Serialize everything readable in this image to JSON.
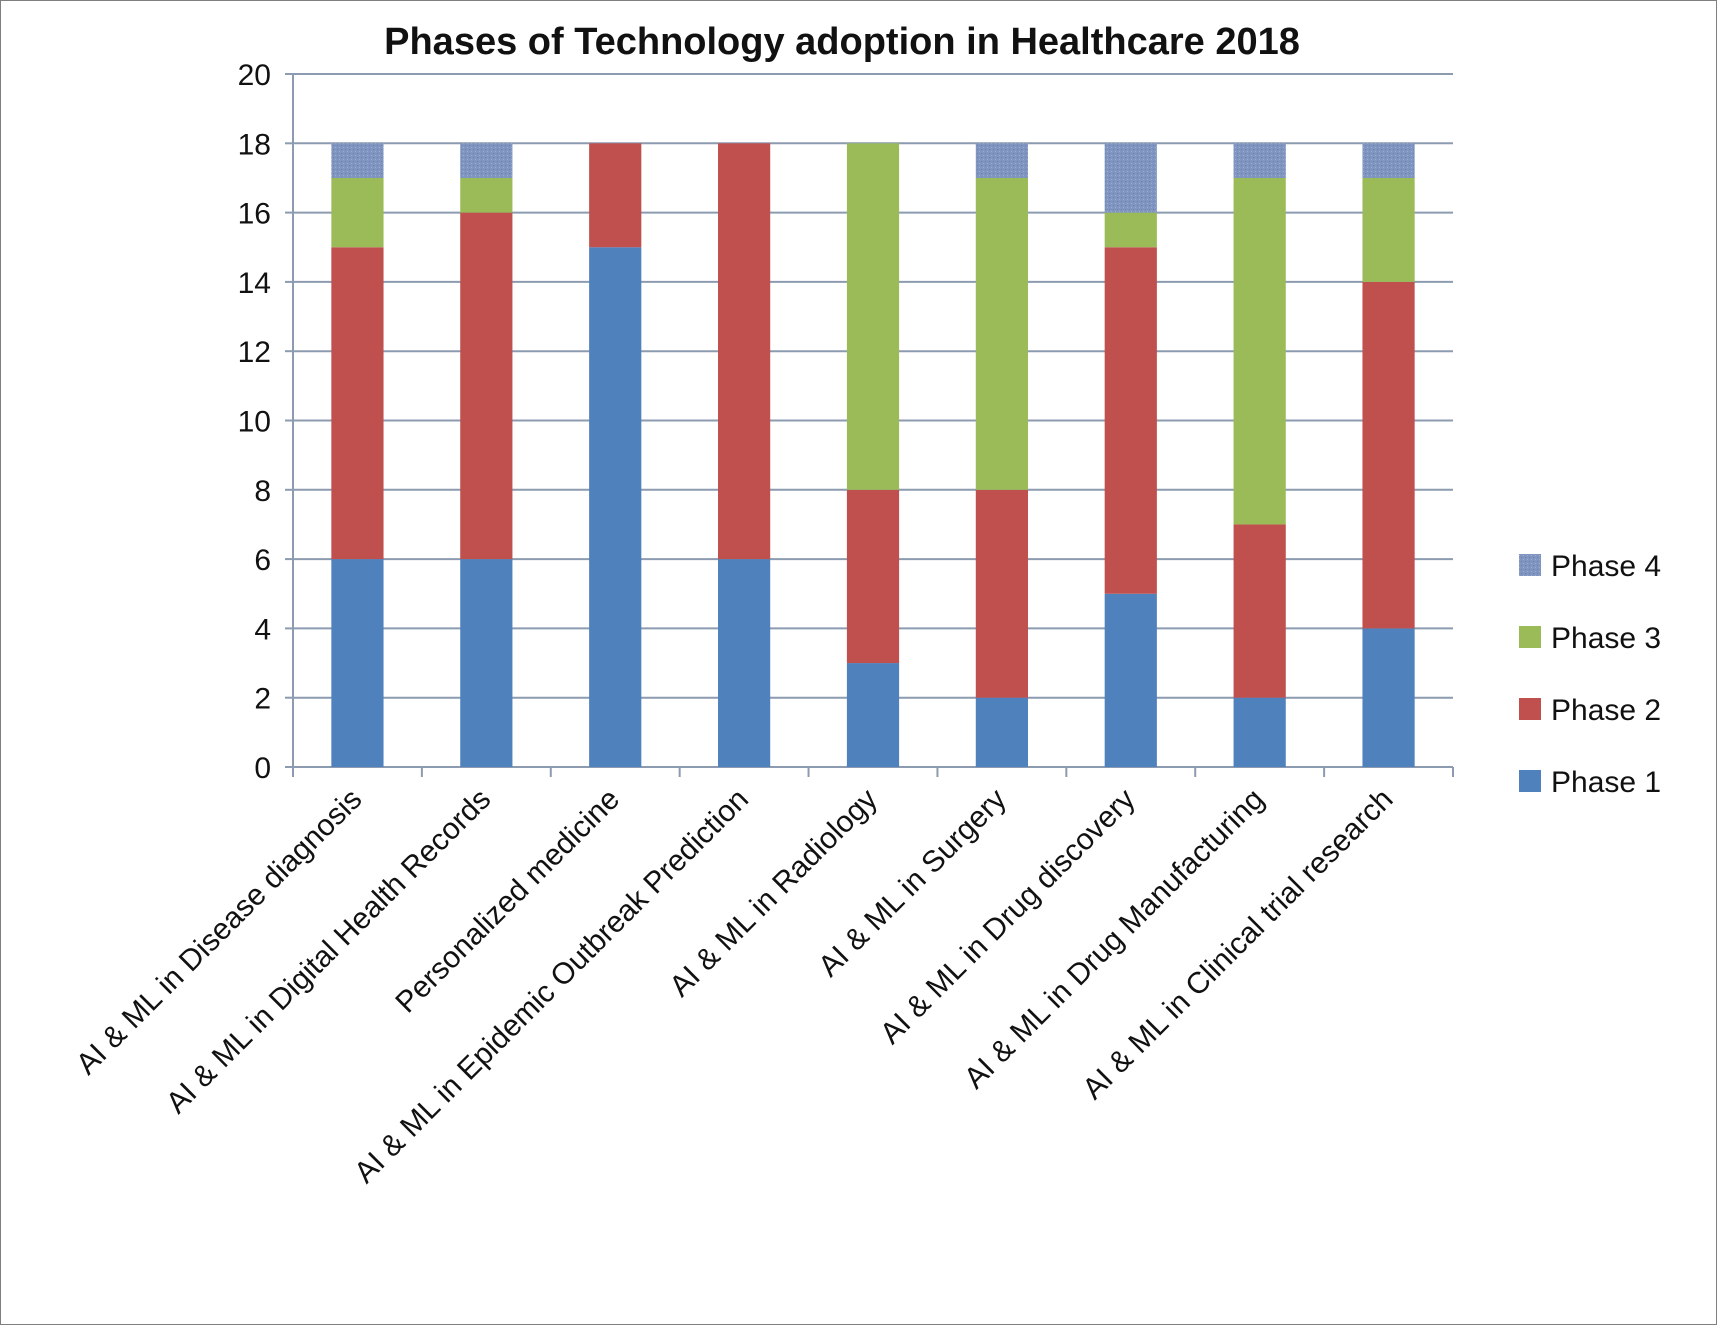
{
  "chart_data": {
    "type": "bar",
    "stacked": true,
    "title": "Phases of Technology adoption in Healthcare 2018",
    "xlabel": "",
    "ylabel": "",
    "ylim": [
      0,
      20
    ],
    "yticks": [
      0,
      2,
      4,
      6,
      8,
      10,
      12,
      14,
      16,
      18,
      20
    ],
    "grid": true,
    "legend_position": "right",
    "categories": [
      "AI & ML in Disease diagnosis",
      "AI & ML in Digital Health Records",
      "Personalized medicine",
      "AI & ML in Epidemic Outbreak Prediction",
      "AI & ML in Radiology",
      "AI & ML in Surgery",
      "AI & ML in Drug discovery",
      "AI & ML in Drug Manufacturing",
      "AI  & ML in Clinical trial research"
    ],
    "series": [
      {
        "name": "Phase 1",
        "color": "#4f81bd",
        "values": [
          6,
          6,
          15,
          6,
          3,
          2,
          5,
          2,
          4
        ]
      },
      {
        "name": "Phase 2",
        "color": "#c0504d",
        "values": [
          9,
          10,
          3,
          12,
          5,
          6,
          10,
          5,
          10
        ]
      },
      {
        "name": "Phase 3",
        "color": "#9bbb59",
        "values": [
          2,
          1,
          0,
          0,
          10,
          9,
          1,
          10,
          3
        ]
      },
      {
        "name": "Phase 4",
        "color": "#8096c0",
        "values": [
          1,
          1,
          0,
          0,
          0,
          1,
          2,
          1,
          1
        ]
      }
    ]
  }
}
